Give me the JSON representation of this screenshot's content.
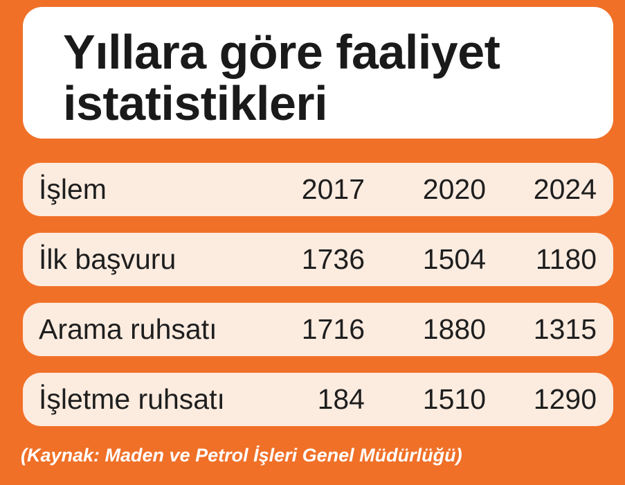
{
  "title": "Yıllara göre faaliyet istatistikleri",
  "title_lines": [
    "Yıllara göre faaliyet",
    "istatistikleri"
  ],
  "colors": {
    "background": "#f07028",
    "row": "#fcebdf",
    "title_box": "#ffffff"
  },
  "chart_data": {
    "type": "table",
    "title": "Yıllara göre faaliyet istatistikleri",
    "columns": [
      "İşlem",
      "2017",
      "2020",
      "2024"
    ],
    "rows": [
      [
        "İlk başvuru",
        "1736",
        "1504",
        "1180"
      ],
      [
        "Arama ruhsatı",
        "1716",
        "1880",
        "1315"
      ],
      [
        "İşletme ruhsatı",
        "184",
        "1510",
        "1290"
      ]
    ]
  },
  "source": "(Kaynak: Maden ve Petrol İşleri Genel Müdürlüğü)"
}
